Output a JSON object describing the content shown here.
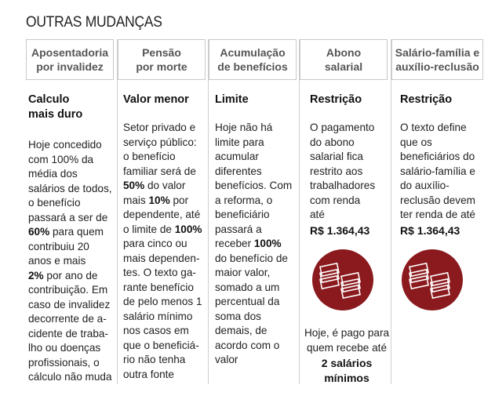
{
  "title": "OUTRAS MUDANÇAS",
  "columns": [
    {
      "header": "Aposentadoria\npor invalidez",
      "subtitle": "Calculo\nmais duro",
      "text_parts": [
        "Hoje concedido\ncom 100% da\nmédia dos\nsalários de todos,\no benefício\npassará a ser de\n",
        "60%",
        " para quem\ncontribuiu 20\nanos e mais\n",
        "2%",
        " por ano de\ncontribuição. Em\ncaso de invalidez\ndecorrente de a-\ncidente de traba-\nlho ou doenças\nprofissionais, o\ncálculo não muda"
      ]
    },
    {
      "header": "Pensão\npor morte",
      "subtitle": "Valor menor",
      "text_parts": [
        "Setor privado e\nserviço público:\no benefício\nfamiliar será de\n",
        "50%",
        " do valor\nmais ",
        "10%",
        " por\ndependente, até\no limite de ",
        "100%",
        "\npara cinco ou\nmais dependen-\ntes. O texto ga-\nrante benefício\nde pelo menos 1\nsalário mínimo\nnos casos em\nque o beneficiá-\nrio não tenha\noutra fonte"
      ]
    },
    {
      "header": "Acumulação\nde benefícios",
      "subtitle": "Limite",
      "text_parts": [
        "Hoje não há\nlimite para\nacumular\ndiferentes\nbenefícios. Com\na reforma, o\nbeneficiário\npassará a\nreceber ",
        "100%",
        "\ndo benefício de\nmaior valor,\nsomado a um\npercentual da\nsoma dos\ndemais, de\nacordo com o\nvalor"
      ]
    },
    {
      "header": "Abono\nsalarial",
      "subtitle": "Restrição",
      "text": "O pagamento\ndo abono\nsalarial fica\nrestrito aos\ntrabalhadores\ncom renda\naté",
      "price": "R$ 1.364,43",
      "footer": "Hoje, é pago para\nquem recebe até",
      "footer_bold": "2 salários\nmínimos",
      "icon": "money-stack-icon"
    },
    {
      "header": "Salário-família e\nauxílio-reclusão",
      "subtitle": "Restrição",
      "text": "O texto define\nque os\nbeneficiários do\nsalário-família e\ndo auxílio-\nreclusão devem\nter renda de até",
      "price": "R$ 1.364,43",
      "icon": "money-stack-icon"
    }
  ],
  "colors": {
    "icon_bg": "#8b1a1e",
    "border": "#c8c8c8",
    "header_text": "#555555"
  }
}
